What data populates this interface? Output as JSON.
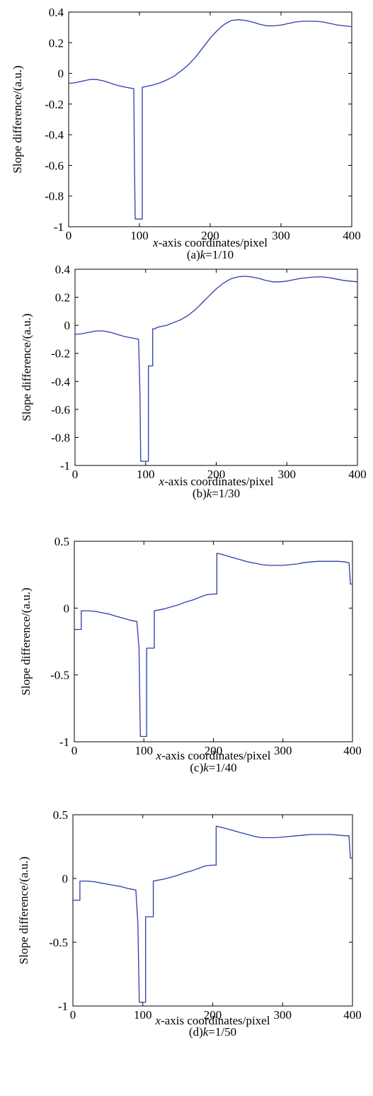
{
  "chart_data": [
    {
      "type": "line",
      "xlabel_italic": "x",
      "xlabel_rest": "-axis coordinates/pixel",
      "ylabel": "Slope difference/(a.u.)",
      "caption_prefix": "(a)",
      "caption_k": "k",
      "caption_rest": "=1/10",
      "xlim": [
        0,
        400
      ],
      "ylim": [
        -1,
        0.4
      ],
      "xticks": [
        0,
        100,
        200,
        300,
        400
      ],
      "xtick_labels": [
        "0",
        "100",
        "200",
        "300",
        "400"
      ],
      "yticks": [
        -1,
        -0.8,
        -0.6,
        -0.4,
        -0.2,
        0,
        0.2,
        0.4
      ],
      "ytick_labels": [
        "-1",
        "-0.8",
        "-0.6",
        "-0.4",
        "-0.2",
        "0",
        "0.2",
        "0.4"
      ],
      "color": "#2b3ea8",
      "series": [
        {
          "x": [
            0,
            10,
            20,
            30,
            40,
            50,
            60,
            70,
            80,
            92,
            93,
            94,
            95,
            104,
            104,
            105,
            110,
            120,
            130,
            140,
            150,
            160,
            170,
            180,
            190,
            200,
            210,
            220,
            230,
            240,
            250,
            260,
            270,
            280,
            290,
            300,
            310,
            320,
            330,
            340,
            350,
            360,
            370,
            380,
            390,
            400
          ],
          "y": [
            -0.065,
            -0.06,
            -0.05,
            -0.04,
            -0.04,
            -0.05,
            -0.065,
            -0.08,
            -0.09,
            -0.1,
            -0.6,
            -0.95,
            -0.95,
            -0.95,
            -0.09,
            -0.09,
            -0.085,
            -0.075,
            -0.06,
            -0.04,
            -0.015,
            0.02,
            0.06,
            0.11,
            0.17,
            0.23,
            0.28,
            0.32,
            0.345,
            0.35,
            0.345,
            0.335,
            0.32,
            0.31,
            0.31,
            0.315,
            0.325,
            0.335,
            0.34,
            0.34,
            0.34,
            0.335,
            0.325,
            0.315,
            0.31,
            0.305
          ]
        }
      ]
    },
    {
      "type": "line",
      "xlabel_italic": "x",
      "xlabel_rest": "-axis coordinates/pixel",
      "ylabel": "Slope difference/(a.u.)",
      "caption_prefix": "(b)",
      "caption_k": "k",
      "caption_rest": "=1/30",
      "xlim": [
        0,
        400
      ],
      "ylim": [
        -1,
        0.4
      ],
      "xticks": [
        0,
        100,
        200,
        300,
        400
      ],
      "xtick_labels": [
        "0",
        "100",
        "200",
        "300",
        "400"
      ],
      "yticks": [
        -1,
        -0.8,
        -0.6,
        -0.4,
        -0.2,
        0,
        0.2,
        0.4
      ],
      "ytick_labels": [
        "-1",
        "-0.8",
        "-0.6",
        "-0.4",
        "-0.2",
        "0",
        "0.2",
        "0.4"
      ],
      "color": "#2b3ea8",
      "series": [
        {
          "x": [
            0,
            10,
            20,
            30,
            40,
            50,
            60,
            70,
            80,
            90,
            92,
            93,
            95,
            104,
            104,
            110,
            110,
            114,
            114,
            120,
            130,
            140,
            150,
            160,
            170,
            180,
            190,
            200,
            210,
            220,
            230,
            240,
            250,
            260,
            270,
            280,
            290,
            300,
            310,
            320,
            330,
            340,
            350,
            360,
            370,
            380,
            390,
            400
          ],
          "y": [
            -0.065,
            -0.06,
            -0.05,
            -0.04,
            -0.04,
            -0.05,
            -0.065,
            -0.08,
            -0.09,
            -0.1,
            -0.5,
            -0.97,
            -0.97,
            -0.97,
            -0.29,
            -0.29,
            -0.025,
            -0.025,
            -0.02,
            -0.01,
            0.0,
            0.02,
            0.04,
            0.07,
            0.11,
            0.16,
            0.21,
            0.26,
            0.3,
            0.33,
            0.345,
            0.35,
            0.345,
            0.335,
            0.32,
            0.31,
            0.31,
            0.315,
            0.325,
            0.335,
            0.34,
            0.345,
            0.345,
            0.34,
            0.33,
            0.32,
            0.315,
            0.31
          ]
        }
      ]
    },
    {
      "type": "line",
      "xlabel_italic": "x",
      "xlabel_rest": "-axis coordinates/pixel",
      "ylabel": "Slope difference/(a.u.)",
      "caption_prefix": "(c)",
      "caption_k": "k",
      "caption_rest": "=1/40",
      "xlim": [
        0,
        400
      ],
      "ylim": [
        -1,
        0.5
      ],
      "xticks": [
        0,
        100,
        200,
        300,
        400
      ],
      "xtick_labels": [
        "0",
        "100",
        "200",
        "300",
        "400"
      ],
      "yticks": [
        -1,
        -0.5,
        0,
        0.5
      ],
      "ytick_labels": [
        "-1",
        "-0.5",
        "0",
        "0.5"
      ],
      "color": "#2b3ea8",
      "series": [
        {
          "x": [
            0,
            10,
            10,
            15,
            20,
            30,
            40,
            50,
            60,
            70,
            80,
            90,
            93,
            95,
            96,
            104,
            104,
            108,
            108,
            115,
            115,
            120,
            130,
            140,
            150,
            160,
            170,
            180,
            190,
            200,
            205,
            205,
            210,
            220,
            230,
            240,
            250,
            260,
            270,
            280,
            290,
            300,
            310,
            320,
            330,
            340,
            350,
            360,
            370,
            380,
            390,
            395,
            397,
            400
          ],
          "y": [
            -0.16,
            -0.16,
            -0.02,
            -0.02,
            -0.02,
            -0.025,
            -0.035,
            -0.045,
            -0.06,
            -0.075,
            -0.09,
            -0.1,
            -0.3,
            -0.96,
            -0.96,
            -0.96,
            -0.3,
            -0.3,
            -0.3,
            -0.3,
            -0.02,
            -0.015,
            -0.005,
            0.01,
            0.025,
            0.045,
            0.06,
            0.08,
            0.1,
            0.105,
            0.105,
            0.41,
            0.405,
            0.39,
            0.375,
            0.36,
            0.345,
            0.335,
            0.325,
            0.32,
            0.32,
            0.32,
            0.325,
            0.33,
            0.34,
            0.345,
            0.35,
            0.35,
            0.35,
            0.35,
            0.345,
            0.34,
            0.18,
            0.18
          ]
        }
      ]
    },
    {
      "type": "line",
      "xlabel_italic": "x",
      "xlabel_rest": "-axis coordinates/pixel",
      "ylabel": "Slope difference/(a.u.)",
      "caption_prefix": "(d)",
      "caption_k": "k",
      "caption_rest": "=1/50",
      "xlim": [
        0,
        400
      ],
      "ylim": [
        -1,
        0.5
      ],
      "xticks": [
        0,
        100,
        200,
        300,
        400
      ],
      "xtick_labels": [
        "0",
        "100",
        "200",
        "300",
        "400"
      ],
      "yticks": [
        -1,
        -0.5,
        0,
        0.5
      ],
      "ytick_labels": [
        "-1",
        "-0.5",
        "0",
        "0.5"
      ],
      "color": "#2b3ea8",
      "series": [
        {
          "x": [
            0,
            10,
            10,
            15,
            20,
            30,
            40,
            50,
            60,
            70,
            80,
            90,
            93,
            95,
            96,
            104,
            104,
            108,
            108,
            115,
            115,
            120,
            130,
            140,
            150,
            160,
            170,
            180,
            190,
            200,
            205,
            205,
            210,
            220,
            230,
            240,
            250,
            260,
            270,
            280,
            290,
            300,
            310,
            320,
            330,
            340,
            350,
            360,
            370,
            380,
            390,
            395,
            397,
            400
          ],
          "y": [
            -0.17,
            -0.17,
            -0.02,
            -0.02,
            -0.02,
            -0.025,
            -0.035,
            -0.045,
            -0.055,
            -0.065,
            -0.08,
            -0.09,
            -0.35,
            -0.97,
            -0.97,
            -0.97,
            -0.3,
            -0.3,
            -0.3,
            -0.3,
            -0.02,
            -0.015,
            -0.005,
            0.01,
            0.025,
            0.045,
            0.06,
            0.08,
            0.1,
            0.105,
            0.105,
            0.41,
            0.405,
            0.39,
            0.375,
            0.36,
            0.345,
            0.33,
            0.32,
            0.32,
            0.32,
            0.325,
            0.33,
            0.335,
            0.34,
            0.345,
            0.345,
            0.345,
            0.345,
            0.34,
            0.335,
            0.335,
            0.16,
            0.16
          ]
        }
      ]
    }
  ]
}
